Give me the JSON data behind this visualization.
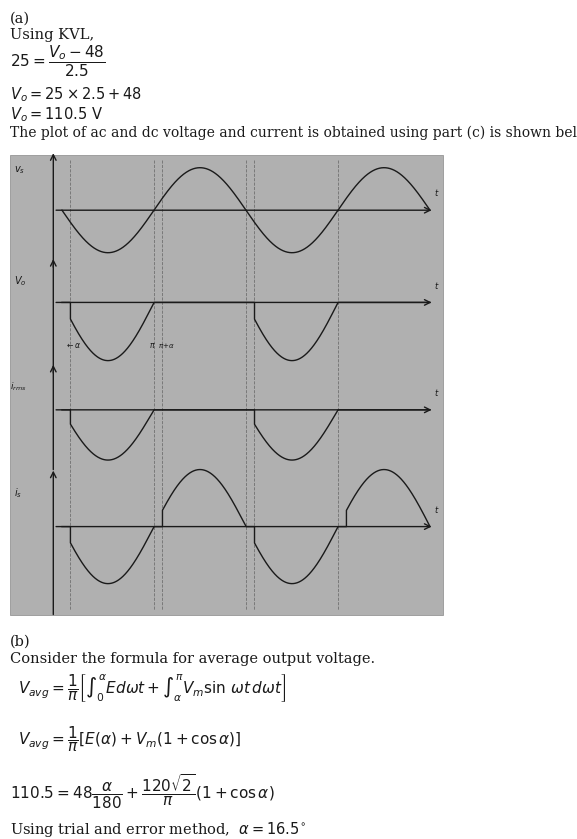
{
  "bg_color": "#ffffff",
  "fig_width": 5.77,
  "fig_height": 8.39,
  "dpi": 100,
  "part_a_label": "(a)",
  "line1": "Using KVL,",
  "line_plot": "The plot of ac and dc voltage and current is obtained using part (c) is shown below",
  "part_b_label": "(b)",
  "line_b1": "Consider the formula for average output voltage.",
  "line_b2": "Using trial and error method,  $\\alpha = 16.5^{\\circ}$",
  "image_bg": "#b0b0b0",
  "alpha_deg": 16.5,
  "text_color": "#1a1a1a",
  "sketch_line_color": "#1a1a1a",
  "sketch_lw": 1.0
}
